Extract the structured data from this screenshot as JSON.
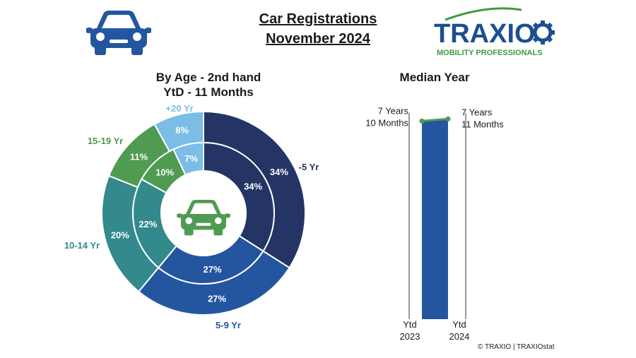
{
  "title": {
    "line1": "Car Registrations",
    "line2": "November 2024"
  },
  "logo": {
    "name": "TRAXIO",
    "tagline": "MOBILITY PROFESSIONALS"
  },
  "footer": "© TRAXIO | TRAXIOstat",
  "icons": {
    "header_car": "car-icon",
    "center_car": "car-icon"
  },
  "colors": {
    "under5": "#243565",
    "y5_9": "#2456a0",
    "y10_14": "#33898b",
    "y15_19": "#4f9b52",
    "y20plus": "#7bbde7",
    "median_bar": "#2456a0",
    "median_line": "#4f9b52"
  },
  "chart_data": [
    {
      "type": "pie",
      "subtype": "double-donut",
      "title": "By Age - 2nd hand",
      "subtitle": "YtD - 11 Months",
      "categories": [
        "-5 Yr",
        "5-9 Yr",
        "10-14 Yr",
        "15-19 Yr",
        "+20 Yr"
      ],
      "series": [
        {
          "ring": "outer",
          "values": [
            34,
            27,
            20,
            11,
            8
          ],
          "labels": [
            "34%",
            "27%",
            "20%",
            "11%",
            "8%"
          ]
        },
        {
          "ring": "inner",
          "values": [
            34,
            27,
            22,
            10,
            7
          ],
          "labels": [
            "34%",
            "27%",
            "22%",
            "10%",
            "7%"
          ]
        }
      ]
    },
    {
      "type": "bar",
      "title": "Median Year",
      "categories": [
        "Ytd\n2023",
        "Ytd\n2024"
      ],
      "category_lines": [
        [
          "Ytd",
          "2023"
        ],
        [
          "Ytd",
          "2024"
        ]
      ],
      "values": [
        7.833,
        7.917
      ],
      "value_labels": [
        [
          "7 Years",
          "10 Months"
        ],
        [
          "7 Years",
          "11 Months"
        ]
      ]
    }
  ]
}
